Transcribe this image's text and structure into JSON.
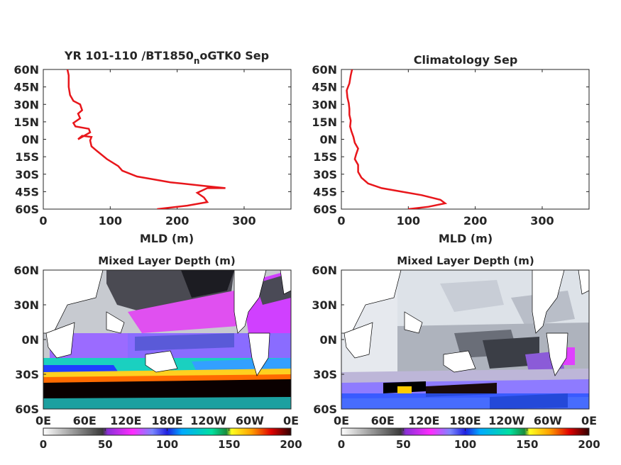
{
  "colors": {
    "profile_line": "#e8161b",
    "axis": "#262626",
    "land": "#ffffff",
    "colorbar_stops": [
      "#ffffff",
      "#9a9a9a",
      "#3a3a3a",
      "#8b2fd8",
      "#ff2bff",
      "#7b87ff",
      "#1f1fe0",
      "#00aaff",
      "#00e0a0",
      "#1a8a3a",
      "#ffff20",
      "#ffa000",
      "#e00000",
      "#300000"
    ]
  },
  "chart_data": [
    {
      "type": "line",
      "panel": "top-left",
      "title_main": "YR 101-110 /BT1850",
      "title_sub": "n",
      "title_tail": "oGTK0 Sep",
      "xlabel": "MLD (m)",
      "xlim": [
        0,
        370
      ],
      "ylim": [
        -60,
        60
      ],
      "x_ticks": [
        "0",
        "100",
        "200",
        "300"
      ],
      "x_tick_values": [
        0,
        100,
        200,
        300
      ],
      "y_ticks": [
        "60N",
        "45N",
        "30N",
        "15N",
        "0N",
        "15S",
        "30S",
        "45S",
        "60S"
      ],
      "y_tick_values": [
        60,
        45,
        30,
        15,
        0,
        -15,
        -30,
        -45,
        -60
      ],
      "series": [
        {
          "x": [
            170,
            215,
            245,
            240,
            230,
            245,
            272,
            240,
            190,
            140,
            118,
            112,
            95,
            80,
            72,
            70,
            72,
            58,
            52,
            70,
            68,
            48,
            45,
            55,
            52,
            58,
            55,
            45,
            40,
            38,
            38,
            36
          ],
          "y": [
            -60,
            -57,
            -54,
            -50,
            -46,
            -42,
            -42,
            -40,
            -37,
            -32,
            -27,
            -23,
            -17,
            -10,
            -6,
            -1,
            2,
            3,
            0,
            6,
            9,
            11,
            14,
            18,
            22,
            25,
            30,
            33,
            38,
            45,
            55,
            60
          ]
        }
      ]
    },
    {
      "type": "line",
      "panel": "top-right",
      "title": "Climatology Sep",
      "xlabel": "MLD (m)",
      "xlim": [
        0,
        370
      ],
      "ylim": [
        -60,
        60
      ],
      "x_ticks": [
        "0",
        "100",
        "200",
        "300"
      ],
      "x_tick_values": [
        0,
        100,
        200,
        300
      ],
      "y_ticks": [
        "60N",
        "45N",
        "30N",
        "15N",
        "0N",
        "15S",
        "30S",
        "45S",
        "60S"
      ],
      "y_tick_values": [
        60,
        45,
        30,
        15,
        0,
        -15,
        -30,
        -45,
        -60
      ],
      "series": [
        {
          "x": [
            100,
            130,
            155,
            148,
            120,
            90,
            60,
            40,
            30,
            25,
            25,
            20,
            22,
            25,
            20,
            18,
            15,
            13,
            14,
            12,
            12,
            11,
            9,
            8,
            12,
            14,
            16
          ],
          "y": [
            -60,
            -58,
            -55,
            -52,
            -48,
            -45,
            -42,
            -38,
            -33,
            -28,
            -22,
            -17,
            -13,
            -8,
            -3,
            2,
            7,
            11,
            16,
            21,
            26,
            31,
            36,
            42,
            48,
            55,
            60
          ]
        }
      ]
    },
    {
      "type": "heatmap",
      "panel": "bottom-left",
      "title": "Mixed Layer Depth (m)",
      "y_ticks": [
        "60N",
        "30N",
        "0N",
        "30S",
        "60S"
      ],
      "y_tick_values": [
        60,
        30,
        0,
        -30,
        -60
      ],
      "x_ticks": [
        "0E",
        "60E",
        "120E",
        "180E",
        "120W",
        "60W",
        "0E"
      ],
      "x_tick_values": [
        0,
        60,
        120,
        180,
        240,
        300,
        360
      ],
      "colorbar_ticks": [
        "0",
        "50",
        "100",
        "150",
        "200"
      ],
      "colorbar_values": [
        0,
        50,
        100,
        150,
        200
      ],
      "clim": [
        0,
        200
      ]
    },
    {
      "type": "heatmap",
      "panel": "bottom-right",
      "title": "Mixed Layer Depth (m)",
      "y_ticks": [
        "60N",
        "30N",
        "0N",
        "30S",
        "60S"
      ],
      "y_tick_values": [
        60,
        30,
        0,
        -30,
        -60
      ],
      "x_ticks": [
        "0E",
        "60E",
        "120E",
        "180E",
        "120W",
        "60W",
        "0E"
      ],
      "x_tick_values": [
        0,
        60,
        120,
        180,
        240,
        300,
        360
      ],
      "colorbar_ticks": [
        "0",
        "50",
        "100",
        "150",
        "200"
      ],
      "colorbar_values": [
        0,
        50,
        100,
        150,
        200
      ],
      "clim": [
        0,
        200
      ]
    }
  ]
}
